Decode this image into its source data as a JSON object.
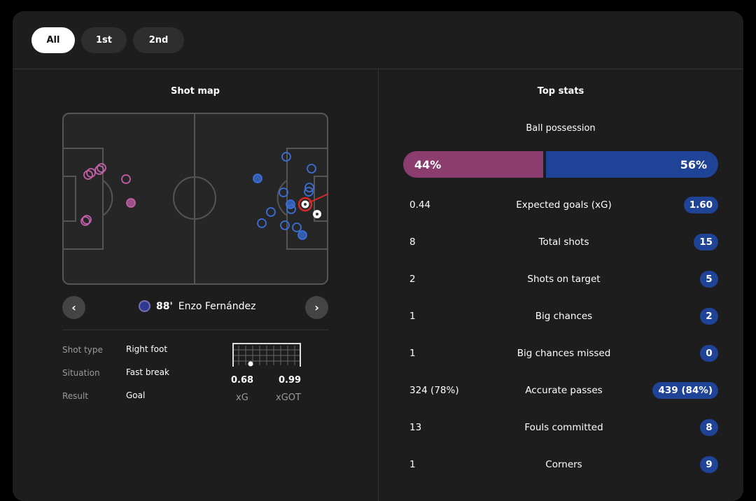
{
  "tabs": [
    "All",
    "1st",
    "2nd"
  ],
  "shot_map": {
    "title": "Shot map",
    "selected_shot": {
      "minute": "88'",
      "player": "Enzo Fernández",
      "shot_type_label": "Shot type",
      "shot_type": "Right foot",
      "situation_label": "Situation",
      "situation": "Fast break",
      "result_label": "Result",
      "result": "Goal",
      "xg": "0.68",
      "xg_label": "xG",
      "xgot": "0.99",
      "xgot_label": "xGOT"
    },
    "colors": {
      "home": "#c25fa8",
      "away": "#3a6fd8",
      "goal_ring": "#d42a2a"
    }
  },
  "top_stats": {
    "title": "Top stats",
    "possession": {
      "label": "Ball possession",
      "home": "44%",
      "away": "56%",
      "home_value": 44,
      "away_value": 56,
      "home_color": "#8b3d70",
      "away_color": "#1f4396"
    },
    "rows": [
      {
        "label": "Expected goals (xG)",
        "home": "0.44",
        "away": "1.60"
      },
      {
        "label": "Total shots",
        "home": "8",
        "away": "15"
      },
      {
        "label": "Shots on target",
        "home": "2",
        "away": "5"
      },
      {
        "label": "Big chances",
        "home": "1",
        "away": "2"
      },
      {
        "label": "Big chances missed",
        "home": "1",
        "away": "0"
      },
      {
        "label": "Accurate passes",
        "home": "324 (78%)",
        "away": "439 (84%)"
      },
      {
        "label": "Fouls committed",
        "home": "13",
        "away": "8"
      },
      {
        "label": "Corners",
        "home": "1",
        "away": "9"
      }
    ]
  }
}
